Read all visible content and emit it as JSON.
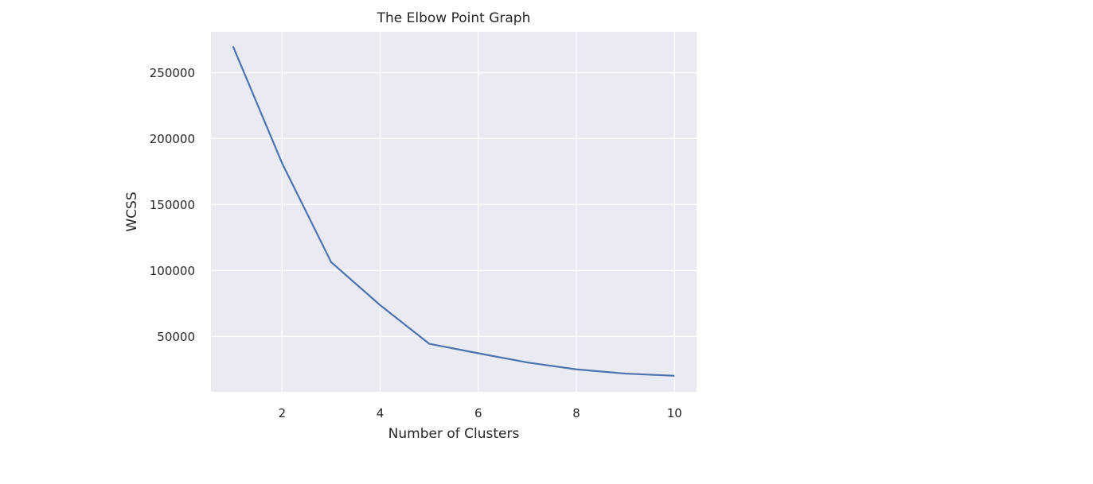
{
  "chart_data": {
    "type": "line",
    "title": "The Elbow Point Graph",
    "xlabel": "Number of Clusters",
    "ylabel": "WCSS",
    "x": [
      1,
      2,
      3,
      4,
      5,
      6,
      7,
      8,
      9,
      10
    ],
    "series": [
      {
        "values": [
          269981,
          181363,
          106348,
          73679,
          44448,
          37233,
          30241,
          25012,
          21830,
          20170
        ]
      }
    ],
    "xlim": [
      0.55,
      10.45
    ],
    "ylim": [
      8000,
      281000
    ],
    "xticks": [
      2,
      4,
      6,
      8,
      10
    ],
    "xtick_labels": [
      "2",
      "4",
      "6",
      "8",
      "10"
    ],
    "yticks": [
      50000,
      100000,
      150000,
      200000,
      250000
    ],
    "ytick_labels": [
      "50000",
      "100000",
      "150000",
      "200000",
      "250000"
    ],
    "grid": true,
    "legend": "none",
    "colors": {
      "plot_background": "#EAEAF2",
      "grid": "#FFFFFF",
      "line": "#4C72B0",
      "text": "#262626"
    }
  }
}
